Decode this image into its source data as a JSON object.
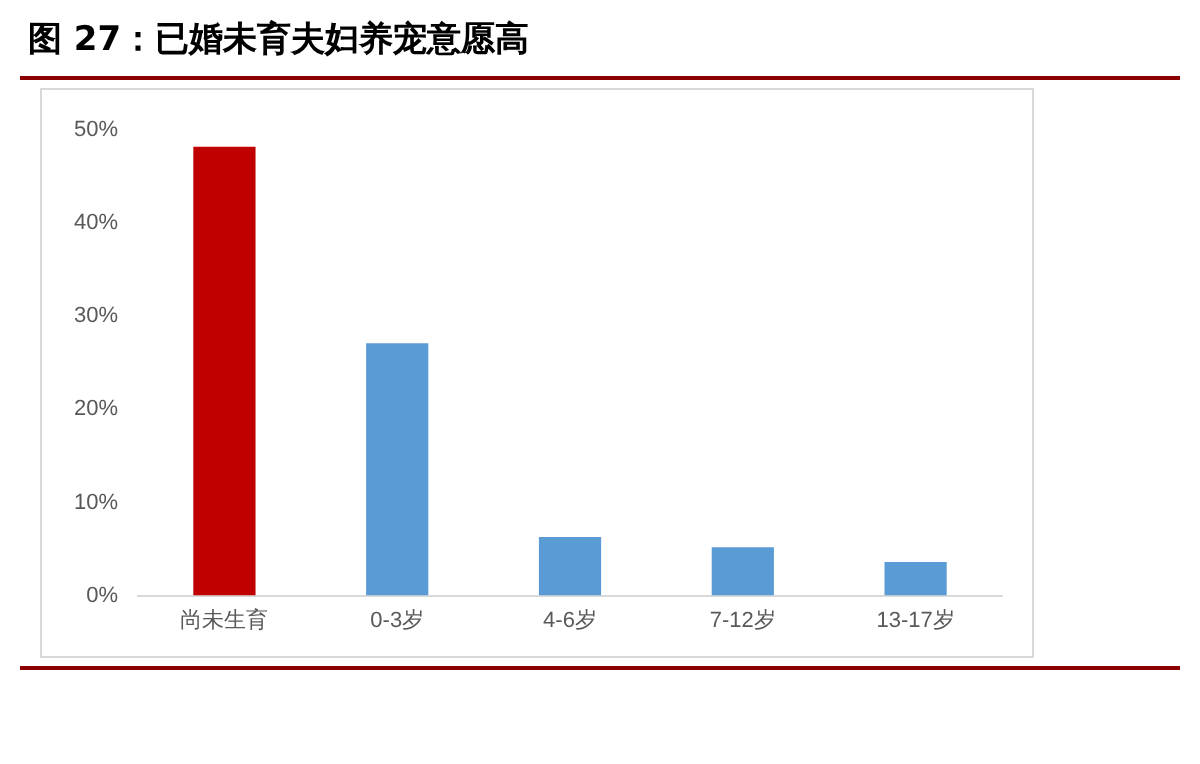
{
  "chart_data": {
    "type": "bar",
    "title": "图 27：已婚未育夫妇养宠意愿高",
    "categories": [
      "尚未生育",
      "0-3岁",
      "4-6岁",
      "7-12岁",
      "13-17岁"
    ],
    "values": [
      48.2,
      27.1,
      6.3,
      5.2,
      3.6
    ],
    "colors": [
      "#c00000",
      "#5b9bd5",
      "#5b9bd5",
      "#5b9bd5",
      "#5b9bd5"
    ],
    "ylim": [
      0,
      50
    ],
    "yticks": [
      {
        "value": 0,
        "label": "0%"
      },
      {
        "value": 10,
        "label": "10%"
      },
      {
        "value": 20,
        "label": "20%"
      },
      {
        "value": 30,
        "label": "30%"
      },
      {
        "value": 40,
        "label": "40%"
      },
      {
        "value": 50,
        "label": "50%"
      }
    ],
    "grid": false,
    "legend": false
  }
}
